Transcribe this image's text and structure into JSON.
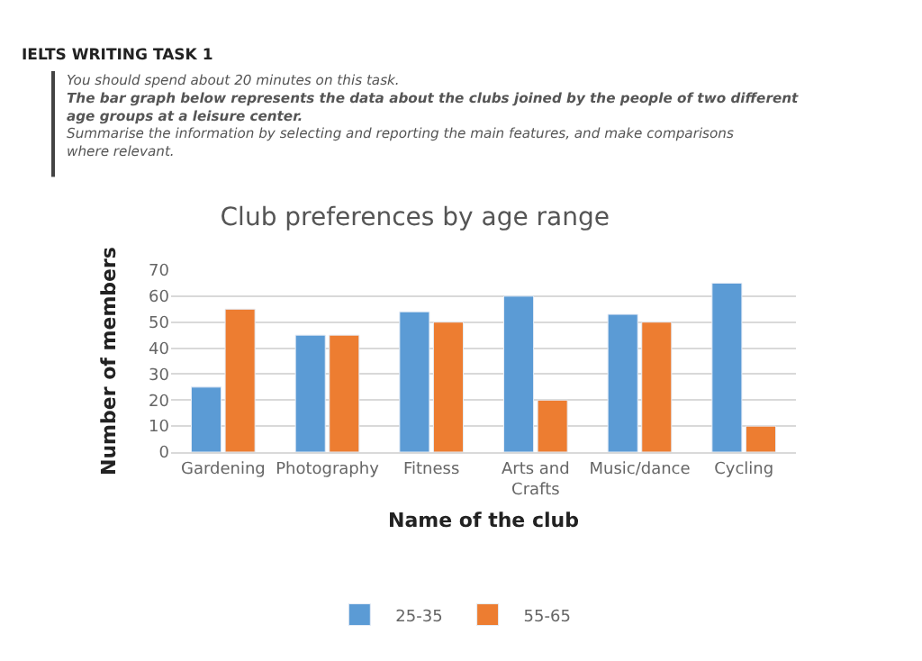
{
  "chart_data": {
    "type": "bar",
    "title": "Club preferences by age range",
    "xlabel": "Name of the club",
    "ylabel": "Number of members",
    "annotations": [
      "IELTS WRITING TASK 1",
      "You should spend about 20 minutes on this task.",
      "The bar graph below represents the data about the clubs joined by the people of two different age groups at a leisure center.",
      "Summarise the information by selecting and reporting the main features, and make comparisons where relevant."
    ],
    "categories": [
      "Gardening",
      "Photography",
      "Fitness",
      "Arts and Crafts",
      "Music/dance",
      "Cycling"
    ],
    "series": [
      {
        "name": "25-35",
        "color": "#5b9bd5",
        "values": [
          25,
          45,
          54,
          60,
          53,
          65
        ]
      },
      {
        "name": "55-65",
        "color": "#ed7d31",
        "values": [
          55,
          45,
          50,
          20,
          50,
          10
        ]
      }
    ],
    "ylim": [
      0,
      70
    ],
    "yticks": [
      0,
      10,
      20,
      30,
      40,
      50,
      60,
      70
    ],
    "grid": "y",
    "legend": "bottom"
  }
}
